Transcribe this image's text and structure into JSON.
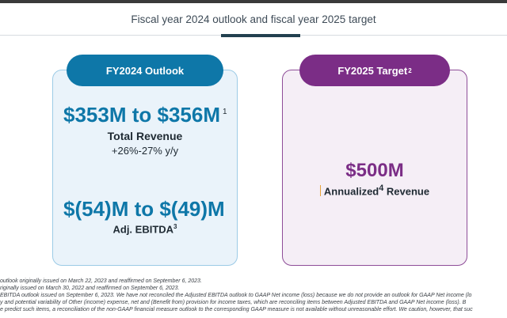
{
  "slide": {
    "title": "Fiscal year 2024 outlook and fiscal year 2025 target"
  },
  "fy2024": {
    "pill_label": "FY2024 Outlook",
    "revenue_range": "$353M to $356M",
    "revenue_footnote": "1",
    "revenue_label": "Total Revenue",
    "revenue_growth": "+26%-27% y/y",
    "ebitda_range": "$(54)M to $(49)M",
    "ebitda_label": "Adj. EBITDA",
    "ebitda_footnote": "3"
  },
  "fy2025": {
    "pill_label": "FY2025 Target",
    "pill_footnote": "2",
    "revenue_value": "$500M",
    "annual_label_prefix": "Annualized",
    "annual_footnote": "4",
    "annual_label_suffix": " Revenue"
  },
  "footnotes": [
    " outlook originally issued on March 22, 2023 and reaffirmed on September 6, 2023.",
    "riginally issued on March 30, 2022 and reaffirmed on September 6, 2023.",
    "EBITDA outlook issued on September 6, 2023. We have not reconciled the Adjusted EBITDA outlook to GAAP Net income (loss) because we do not provide an outlook for GAAP Net income (lo",
    "y and potential variability of Other (income) expense, net and (Benefit from) provision for income taxes, which are reconciling items between Adjusted EBITDA and GAAP Net income (loss). B",
    "e predict such items, a reconciliation of the non-GAAP financial measure outlook to the corresponding GAAP measure is not available without unreasonable effort. We caution, however, that suc"
  ]
}
